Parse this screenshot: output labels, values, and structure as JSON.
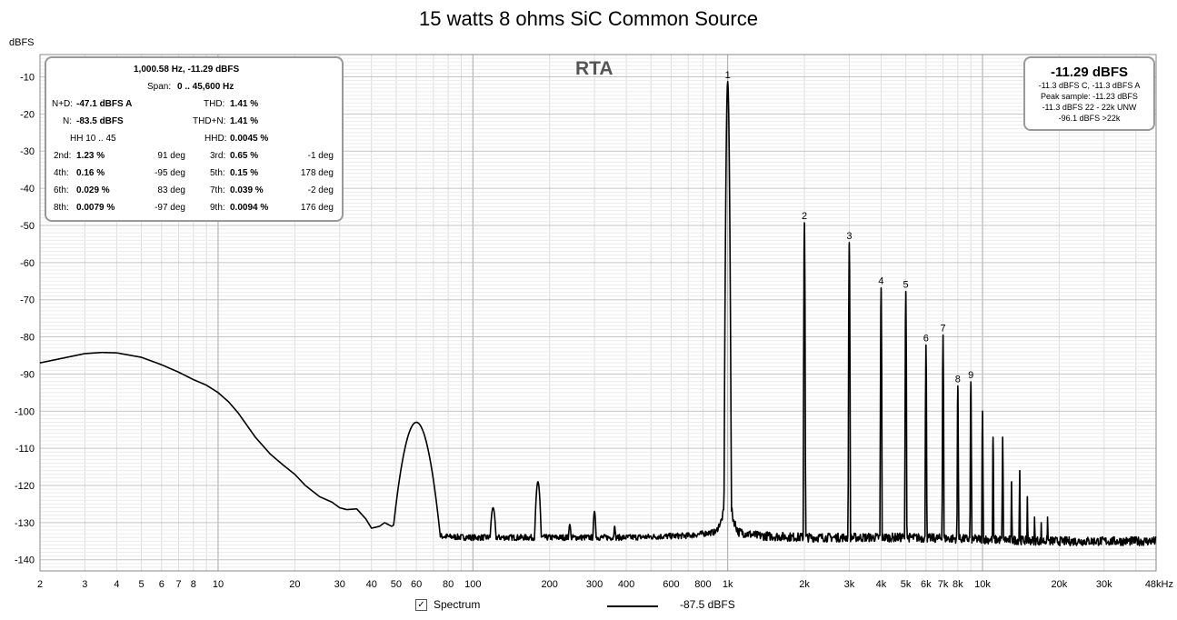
{
  "chart_data": {
    "type": "line",
    "title": "15 watts 8 ohms SiC Common Source",
    "ylabel": "dBFS",
    "xscale": "log",
    "xlim": [
      2,
      48000
    ],
    "ylim": [
      -143,
      -4
    ],
    "grid": true,
    "x_ticks": [
      {
        "v": 2,
        "label": "2"
      },
      {
        "v": 3,
        "label": "3"
      },
      {
        "v": 4,
        "label": "4"
      },
      {
        "v": 5,
        "label": "5"
      },
      {
        "v": 6,
        "label": "6"
      },
      {
        "v": 7,
        "label": "7"
      },
      {
        "v": 8,
        "label": "8"
      },
      {
        "v": 10,
        "label": "10"
      },
      {
        "v": 20,
        "label": "20"
      },
      {
        "v": 30,
        "label": "30"
      },
      {
        "v": 40,
        "label": "40"
      },
      {
        "v": 50,
        "label": "50"
      },
      {
        "v": 60,
        "label": "60"
      },
      {
        "v": 80,
        "label": "80"
      },
      {
        "v": 100,
        "label": "100"
      },
      {
        "v": 200,
        "label": "200"
      },
      {
        "v": 300,
        "label": "300"
      },
      {
        "v": 400,
        "label": "400"
      },
      {
        "v": 600,
        "label": "600"
      },
      {
        "v": 800,
        "label": "800"
      },
      {
        "v": 1000,
        "label": "1k"
      },
      {
        "v": 2000,
        "label": "2k"
      },
      {
        "v": 3000,
        "label": "3k"
      },
      {
        "v": 4000,
        "label": "4k"
      },
      {
        "v": 5000,
        "label": "5k"
      },
      {
        "v": 6000,
        "label": "6k"
      },
      {
        "v": 7000,
        "label": "7k"
      },
      {
        "v": 8000,
        "label": "8k"
      },
      {
        "v": 10000,
        "label": "10k"
      },
      {
        "v": 20000,
        "label": "20k"
      },
      {
        "v": 30000,
        "label": "30k"
      },
      {
        "v": 48000,
        "label": "48kHz"
      }
    ],
    "y_ticks": [
      -10,
      -20,
      -30,
      -40,
      -50,
      -60,
      -70,
      -80,
      -90,
      -100,
      -110,
      -120,
      -130,
      -140
    ],
    "series": [
      {
        "name": "Spectrum",
        "color": "#000000",
        "noise_floor": [
          [
            2,
            -87
          ],
          [
            3,
            -84.5
          ],
          [
            3.5,
            -84.2
          ],
          [
            4,
            -84.3
          ],
          [
            5,
            -85.5
          ],
          [
            6,
            -87.5
          ],
          [
            7,
            -89.5
          ],
          [
            8,
            -91.5
          ],
          [
            9,
            -93
          ],
          [
            10,
            -95
          ],
          [
            11,
            -97.5
          ],
          [
            12,
            -100.5
          ],
          [
            14,
            -107
          ],
          [
            16,
            -111.5
          ],
          [
            18,
            -114.5
          ],
          [
            20,
            -117
          ],
          [
            22,
            -120
          ],
          [
            25,
            -123
          ],
          [
            28,
            -124.5
          ],
          [
            30,
            -126
          ],
          [
            32,
            -126.5
          ],
          [
            35,
            -126.3
          ],
          [
            38,
            -129
          ],
          [
            40,
            -131.5
          ],
          [
            43,
            -131
          ],
          [
            45,
            -130
          ],
          [
            48,
            -131
          ],
          [
            52,
            -129.5
          ],
          [
            55,
            -131.5
          ],
          [
            60,
            -133
          ],
          [
            70,
            -133.5
          ],
          [
            80,
            -133.8
          ],
          [
            100,
            -134
          ],
          [
            200,
            -134
          ],
          [
            400,
            -134
          ],
          [
            700,
            -133.5
          ],
          [
            900,
            -132.5
          ],
          [
            950,
            -129
          ],
          [
            980,
            -124
          ],
          [
            1000,
            -118
          ],
          [
            1020,
            -124
          ],
          [
            1050,
            -129
          ],
          [
            1100,
            -132.5
          ],
          [
            1300,
            -133.5
          ],
          [
            2000,
            -134
          ],
          [
            5000,
            -134
          ],
          [
            10000,
            -134.5
          ],
          [
            20000,
            -135
          ],
          [
            48000,
            -135
          ]
        ],
        "peaks": [
          {
            "f": 60,
            "db": -103,
            "w": 0.05
          },
          {
            "f": 120,
            "db": -126,
            "w": 0.012
          },
          {
            "f": 180,
            "db": -119,
            "w": 0.01
          },
          {
            "f": 240,
            "db": -130.5,
            "w": 0.008
          },
          {
            "f": 300,
            "db": -127,
            "w": 0.007
          },
          {
            "f": 360,
            "db": -131,
            "w": 0.006
          },
          {
            "f": 1000,
            "db": -11.29,
            "w": 0.004
          },
          {
            "f": 2000,
            "db": -49.3,
            "w": 0.0015
          },
          {
            "f": 3000,
            "db": -54.6,
            "w": 0.0015
          },
          {
            "f": 4000,
            "db": -66.8,
            "w": 0.0015
          },
          {
            "f": 5000,
            "db": -67.8,
            "w": 0.0015
          },
          {
            "f": 6000,
            "db": -82.2,
            "w": 0.0015
          },
          {
            "f": 7000,
            "db": -79.5,
            "w": 0.0015
          },
          {
            "f": 8000,
            "db": -93.2,
            "w": 0.0015
          },
          {
            "f": 9000,
            "db": -92.1,
            "w": 0.0015
          },
          {
            "f": 10000,
            "db": -100,
            "w": 0.0015
          },
          {
            "f": 11000,
            "db": -107,
            "w": 0.0015
          },
          {
            "f": 12000,
            "db": -107,
            "w": 0.0015
          },
          {
            "f": 13000,
            "db": -119,
            "w": 0.0015
          },
          {
            "f": 14000,
            "db": -116,
            "w": 0.0015
          },
          {
            "f": 15000,
            "db": -123,
            "w": 0.0015
          },
          {
            "f": 16000,
            "db": -128.5,
            "w": 0.0015
          },
          {
            "f": 17000,
            "db": -130,
            "w": 0.0015
          },
          {
            "f": 18000,
            "db": -128.5,
            "w": 0.0015
          }
        ]
      }
    ],
    "harmonic_labels": [
      {
        "label": "1",
        "f": 1000,
        "db": -11.29
      },
      {
        "label": "2",
        "f": 2000,
        "db": -49.3
      },
      {
        "label": "3",
        "f": 3000,
        "db": -54.6
      },
      {
        "label": "4",
        "f": 4000,
        "db": -66.8
      },
      {
        "label": "5",
        "f": 5000,
        "db": -67.8
      },
      {
        "label": "6",
        "f": 6000,
        "db": -82.2
      },
      {
        "label": "7",
        "f": 7000,
        "db": -79.5
      },
      {
        "label": "8",
        "f": 8000,
        "db": -93.2
      },
      {
        "label": "9",
        "f": 9000,
        "db": -92.1
      }
    ]
  },
  "overlay_title": "RTA",
  "stats": {
    "fundamental": "1,000.58 Hz, -11.29 dBFS",
    "span_label": "Span:",
    "span_value": "0 .. 45,600 Hz",
    "nd_label": "N+D:",
    "nd_value": "-47.1 dBFS A",
    "thd_label": "THD:",
    "thd_value": "1.41 %",
    "n_label": "N:",
    "n_value": "-83.5 dBFS",
    "thdn_label": "THD+N:",
    "thdn_value": "1.41 %",
    "hh_label": "HH 10 .. 45",
    "hhd_label": "HHD:",
    "hhd_value": "0.0045 %",
    "harmonics": [
      {
        "l1": "2nd:",
        "v1": "1.23 %",
        "p1": "91 deg",
        "l2": "3rd:",
        "v2": "0.65 %",
        "p2": "-1 deg"
      },
      {
        "l1": "4th:",
        "v1": "0.16 %",
        "p1": "-95 deg",
        "l2": "5th:",
        "v2": "0.15 %",
        "p2": "178 deg"
      },
      {
        "l1": "6th:",
        "v1": "0.029 %",
        "p1": "83 deg",
        "l2": "7th:",
        "v2": "0.039 %",
        "p2": "-2 deg"
      },
      {
        "l1": "8th:",
        "v1": "0.0079 %",
        "p1": "-97 deg",
        "l2": "9th:",
        "v2": "0.0094 %",
        "p2": "176 deg"
      }
    ]
  },
  "level": {
    "main": "-11.29 dBFS",
    "line1": "-11.3 dBFS C, -11.3 dBFS A",
    "line2": "Peak sample: -11.23 dBFS",
    "line3": "-11.3 dBFS 22 - 22k UNW",
    "line4": "-96.1 dBFS >22k"
  },
  "legend": {
    "checked_mark": "✓",
    "label": "Spectrum",
    "value": "-87.5 dBFS"
  }
}
